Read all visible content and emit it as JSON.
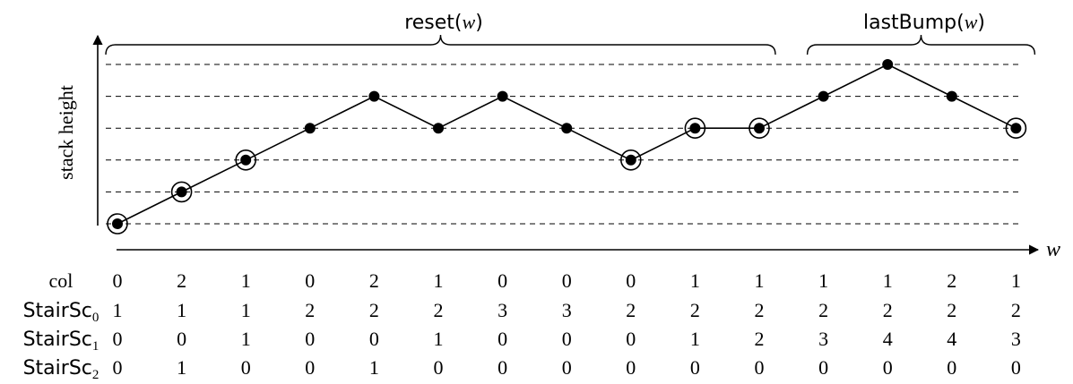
{
  "chart_data": {
    "type": "line",
    "axis_label_y": "stack height",
    "axis_label_x": "w",
    "brace_left": {
      "name": "reset",
      "arg": "w"
    },
    "brace_right": {
      "name": "lastBump",
      "arg": "w"
    },
    "heights": [
      0,
      1,
      2,
      3,
      4,
      3,
      4,
      3,
      2,
      3,
      3,
      4,
      5,
      4,
      3
    ],
    "circled": [
      true,
      true,
      true,
      false,
      false,
      false,
      false,
      false,
      true,
      true,
      true,
      false,
      false,
      false,
      true
    ],
    "levels": 6,
    "reset_span": [
      0,
      10
    ],
    "lastbump_span": [
      11,
      14
    ]
  },
  "table": {
    "rows": [
      {
        "label": "col",
        "label_main": "col",
        "label_sub": "",
        "values": [
          "0",
          "2",
          "1",
          "0",
          "2",
          "1",
          "0",
          "0",
          "0",
          "1",
          "1",
          "1",
          "1",
          "2",
          "1"
        ]
      },
      {
        "label": "StairSc0",
        "label_main": "StairSc",
        "label_sub": "0",
        "values": [
          "1",
          "1",
          "1",
          "2",
          "2",
          "2",
          "3",
          "3",
          "2",
          "2",
          "2",
          "2",
          "2",
          "2",
          "2"
        ]
      },
      {
        "label": "StairSc1",
        "label_main": "StairSc",
        "label_sub": "1",
        "values": [
          "0",
          "0",
          "1",
          "0",
          "0",
          "1",
          "0",
          "0",
          "0",
          "1",
          "2",
          "3",
          "4",
          "4",
          "3"
        ]
      },
      {
        "label": "StairSc2",
        "label_main": "StairSc",
        "label_sub": "2",
        "values": [
          "0",
          "1",
          "0",
          "0",
          "1",
          "0",
          "0",
          "0",
          "0",
          "0",
          "0",
          "0",
          "0",
          "0",
          "0"
        ]
      }
    ]
  }
}
